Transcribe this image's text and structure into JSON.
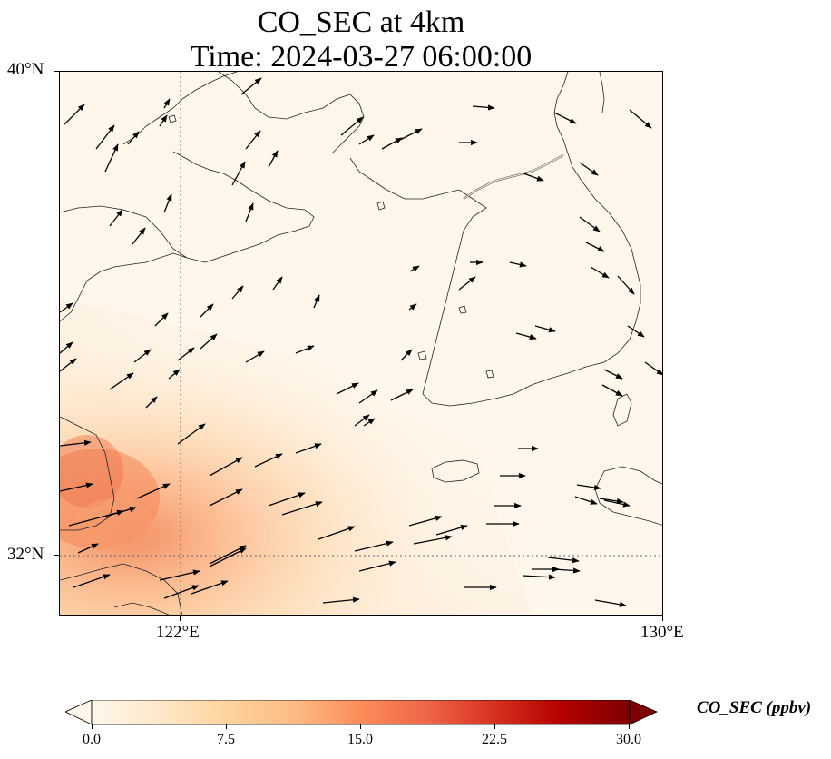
{
  "title": {
    "line1": "CO_SEC at 4km",
    "line2": "Time: 2024-03-27 06:00:00"
  },
  "map": {
    "lon_range": [
      120,
      130
    ],
    "lat_range": [
      31,
      40
    ],
    "lat_ticks": [
      {
        "value": 40,
        "label": "40°N"
      },
      {
        "value": 32,
        "label": "32°N"
      }
    ],
    "lon_ticks": [
      {
        "value": 122,
        "label": "122°E"
      },
      {
        "value": 130,
        "label": "130°E"
      }
    ],
    "gridlines": {
      "style": "dotted",
      "lons": [
        122
      ],
      "lats": [
        32
      ]
    },
    "field": "CO_SEC",
    "units": "ppbv",
    "field_pattern": "background mostly 0-2 ppbv, a plume of elevated values (8-15 ppbv) near the Chinese coast south-west, decreasing toward the north-east",
    "wind_vectors": "mostly westerly to south-westerly, stronger in the south",
    "colormap": "OrRd"
  },
  "colorbar": {
    "label": "CO_SEC (ppbv)",
    "ticks": [
      "0.0",
      "7.5",
      "15.0",
      "22.5",
      "30.0"
    ],
    "min": 0,
    "max": 30,
    "extend": "both",
    "colors": [
      "#fff7ec",
      "#fee8c8",
      "#fdd49e",
      "#fdbb84",
      "#fc8d59",
      "#ef6548",
      "#d7301f",
      "#b30000",
      "#7f0000"
    ]
  }
}
